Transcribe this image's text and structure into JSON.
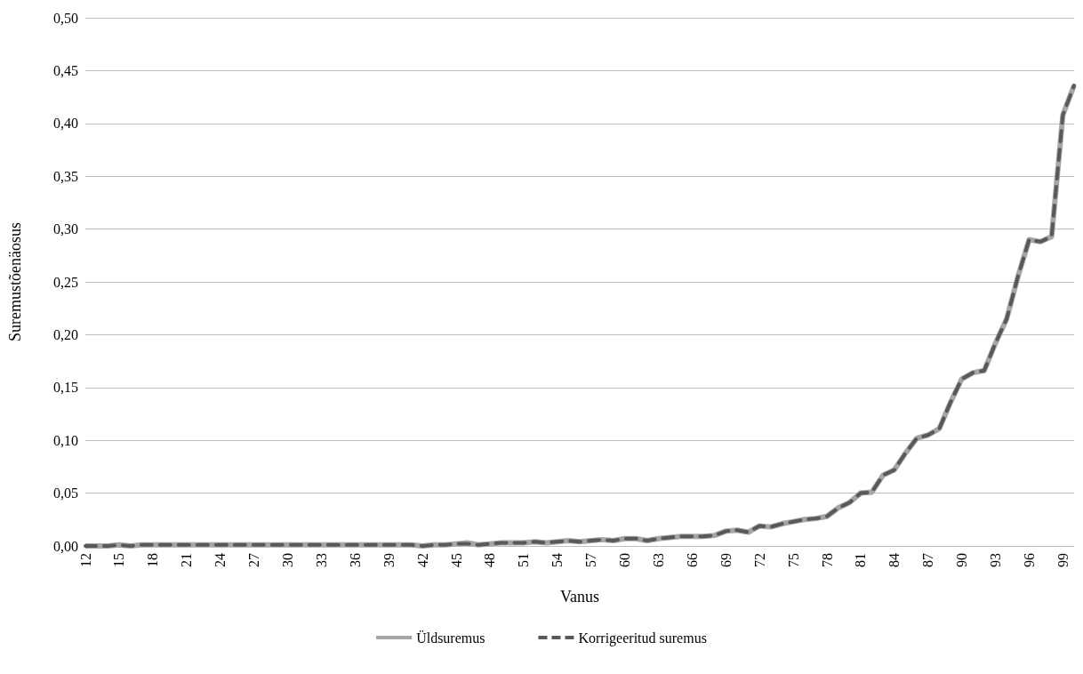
{
  "chart_data": {
    "type": "line",
    "xlabel": "Vanus",
    "ylabel": "Suremustõenäosus",
    "categories": [
      "12",
      null,
      null,
      "15",
      null,
      null,
      "18",
      null,
      null,
      "21",
      null,
      null,
      "24",
      null,
      null,
      "27",
      null,
      null,
      "30",
      null,
      null,
      "33",
      null,
      null,
      "36",
      null,
      null,
      "39",
      null,
      null,
      "42",
      null,
      null,
      "45",
      null,
      null,
      "48",
      null,
      null,
      "51",
      null,
      null,
      "54",
      null,
      null,
      "57",
      null,
      null,
      "60",
      null,
      null,
      "63",
      null,
      null,
      "66",
      null,
      null,
      "69",
      null,
      null,
      "72",
      null,
      null,
      "75",
      null,
      null,
      "78",
      null,
      null,
      "81",
      null,
      null,
      "84",
      null,
      null,
      "87",
      null,
      null,
      "90",
      null,
      null,
      "93",
      null,
      null,
      "96",
      null,
      null,
      "99",
      null
    ],
    "series": [
      {
        "name": "Üldsuremus",
        "color": "#a6a6a6",
        "line_style": "solid",
        "values": [
          0.0,
          0.0,
          0.0,
          0.001,
          0.0,
          0.001,
          0.001,
          0.001,
          0.001,
          0.001,
          0.001,
          0.001,
          0.001,
          0.001,
          0.001,
          0.001,
          0.001,
          0.001,
          0.001,
          0.001,
          0.001,
          0.001,
          0.001,
          0.001,
          0.001,
          0.001,
          0.001,
          0.001,
          0.001,
          0.001,
          0.0,
          0.001,
          0.001,
          0.002,
          0.003,
          0.001,
          0.002,
          0.003,
          0.003,
          0.003,
          0.004,
          0.003,
          0.004,
          0.005,
          0.004,
          0.005,
          0.006,
          0.005,
          0.007,
          0.007,
          0.005,
          0.007,
          0.008,
          0.009,
          0.009,
          0.009,
          0.01,
          0.014,
          0.015,
          0.013,
          0.019,
          0.018,
          0.021,
          0.023,
          0.025,
          0.026,
          0.028,
          0.036,
          0.041,
          0.05,
          0.051,
          0.067,
          0.072,
          0.088,
          0.102,
          0.105,
          0.111,
          0.136,
          0.158,
          0.164,
          0.166,
          0.192,
          0.215,
          0.255,
          0.29,
          0.288,
          0.293,
          0.408,
          0.436
        ]
      },
      {
        "name": "Korrigeeritud suremus",
        "color": "#595959",
        "line_style": "dashed",
        "values": [
          0.0,
          0.0,
          0.0,
          0.001,
          0.0,
          0.001,
          0.001,
          0.001,
          0.001,
          0.001,
          0.001,
          0.001,
          0.001,
          0.001,
          0.001,
          0.001,
          0.001,
          0.001,
          0.001,
          0.001,
          0.001,
          0.001,
          0.001,
          0.001,
          0.001,
          0.001,
          0.001,
          0.001,
          0.001,
          0.001,
          0.0,
          0.001,
          0.001,
          0.002,
          0.002,
          0.001,
          0.002,
          0.003,
          0.003,
          0.003,
          0.004,
          0.003,
          0.004,
          0.005,
          0.004,
          0.005,
          0.006,
          0.005,
          0.007,
          0.007,
          0.005,
          0.007,
          0.008,
          0.009,
          0.009,
          0.009,
          0.01,
          0.014,
          0.015,
          0.013,
          0.019,
          0.018,
          0.021,
          0.023,
          0.025,
          0.026,
          0.028,
          0.036,
          0.041,
          0.05,
          0.051,
          0.067,
          0.072,
          0.088,
          0.102,
          0.105,
          0.111,
          0.136,
          0.158,
          0.164,
          0.166,
          0.192,
          0.215,
          0.255,
          0.29,
          0.288,
          0.293,
          0.408,
          0.436
        ]
      }
    ],
    "ylim": [
      0,
      0.5
    ],
    "yticks": [
      {
        "value": 0,
        "label": "0,00"
      },
      {
        "value": 0.05,
        "label": "0,05"
      },
      {
        "value": 0.1,
        "label": "0,10"
      },
      {
        "value": 0.15,
        "label": "0,15"
      },
      {
        "value": 0.2,
        "label": "0,20"
      },
      {
        "value": 0.25,
        "label": "0,25"
      },
      {
        "value": 0.3,
        "label": "0,30"
      },
      {
        "value": 0.35,
        "label": "0,35"
      },
      {
        "value": 0.4,
        "label": "0,40"
      },
      {
        "value": 0.45,
        "label": "0,45"
      },
      {
        "value": 0.5,
        "label": "0,50"
      }
    ],
    "grid": "y",
    "legend": "bottom",
    "marker": "none"
  }
}
